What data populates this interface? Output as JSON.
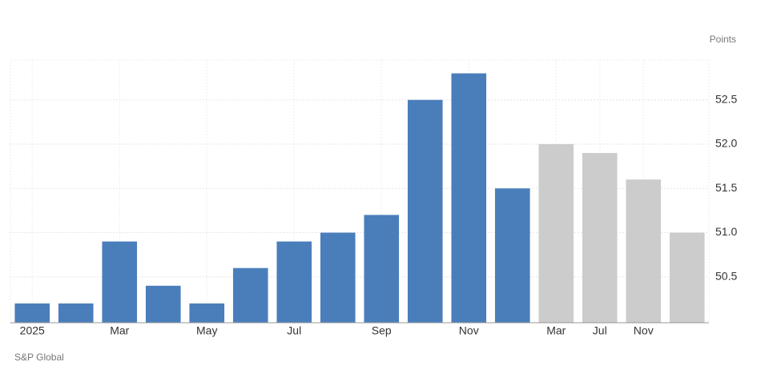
{
  "chart_data": {
    "type": "bar",
    "unit_label": "Points",
    "source": "S&P Global",
    "categories": [
      "2025",
      null,
      "Mar",
      null,
      "May",
      null,
      "Jul",
      null,
      "Sep",
      null,
      "Nov",
      null,
      "Mar",
      "Jul",
      "Nov",
      null
    ],
    "values": [
      50.2,
      50.2,
      50.9,
      50.4,
      50.2,
      50.6,
      50.9,
      51.0,
      51.2,
      52.5,
      52.8,
      51.5,
      52.0,
      51.9,
      51.6,
      51.0
    ],
    "colors": [
      "#4a7ebb",
      "#4a7ebb",
      "#4a7ebb",
      "#4a7ebb",
      "#4a7ebb",
      "#4a7ebb",
      "#4a7ebb",
      "#4a7ebb",
      "#4a7ebb",
      "#4a7ebb",
      "#4a7ebb",
      "#4a7ebb",
      "#cccccc",
      "#cccccc",
      "#cccccc",
      "#cccccc"
    ],
    "ylim": [
      50.0,
      52.95
    ],
    "yticks": [
      50.5,
      {
        "value": 51,
        "label": "51.0"
      },
      51.5,
      {
        "value": 52,
        "label": "52.0"
      },
      52.5
    ],
    "grid": true
  }
}
